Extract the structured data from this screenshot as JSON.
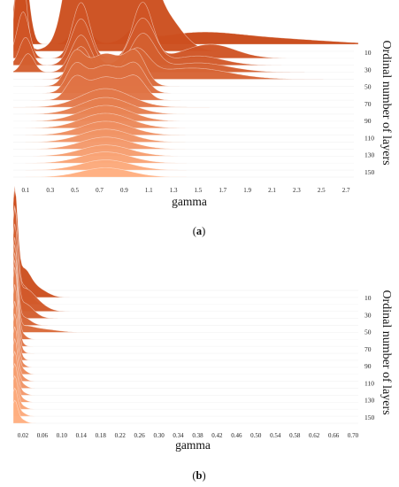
{
  "chart_data": [
    {
      "type": "area",
      "panel": "(a)",
      "caption_open": "(",
      "caption_letter": "a",
      "caption_close": ")",
      "xlabel": "gamma",
      "ylabel": "Ordinal number of layers",
      "xlim": [
        0.0,
        2.8
      ],
      "x_ticks": [
        "0.1",
        "0.3",
        "0.5",
        "0.7",
        "0.9",
        "1.1",
        "1.3",
        "1.5",
        "1.7",
        "1.9",
        "2.1",
        "2.3",
        "2.5",
        "2.7"
      ],
      "y_ticks": [
        "10",
        "30",
        "50",
        "70",
        "90",
        "110",
        "130",
        "150"
      ],
      "layer_count": 20,
      "colors": {
        "dark": "#c94a1a",
        "light": "#ffae80"
      },
      "series": [
        {
          "peaks": [
            [
              0.07,
              0.05,
              1.0
            ],
            [
              0.55,
              0.07,
              0.25
            ],
            [
              1.0,
              0.08,
              0.15
            ],
            [
              1.5,
              0.35,
              0.12
            ],
            [
              2.2,
              0.4,
              0.05
            ]
          ]
        },
        {
          "peaks": [
            [
              0.06,
              0.04,
              1.05
            ],
            [
              0.5,
              0.08,
              0.9
            ],
            [
              0.75,
              0.2,
              0.8
            ],
            [
              1.05,
              0.08,
              0.85
            ],
            [
              1.2,
              0.15,
              0.4
            ]
          ]
        },
        {
          "peaks": [
            [
              0.08,
              0.05,
              0.5
            ],
            [
              0.55,
              0.07,
              0.6
            ],
            [
              1.05,
              0.08,
              0.6
            ],
            [
              1.6,
              0.2,
              0.15
            ]
          ]
        },
        {
          "peaks": [
            [
              0.1,
              0.05,
              0.3
            ],
            [
              0.55,
              0.08,
              0.5
            ],
            [
              1.05,
              0.1,
              0.5
            ],
            [
              1.5,
              0.2,
              0.1
            ]
          ]
        },
        {
          "peaks": [
            [
              0.12,
              0.05,
              0.2
            ],
            [
              0.55,
              0.08,
              0.4
            ],
            [
              1.05,
              0.1,
              0.4
            ],
            [
              1.5,
              0.25,
              0.1
            ]
          ]
        },
        {
          "peaks": [
            [
              0.55,
              0.08,
              0.35
            ],
            [
              1.0,
              0.1,
              0.3
            ],
            [
              1.45,
              0.3,
              0.12
            ]
          ]
        },
        {
          "peaks": [
            [
              0.5,
              0.07,
              0.3
            ],
            [
              0.75,
              0.15,
              0.35
            ],
            [
              1.0,
              0.08,
              0.3
            ]
          ]
        },
        {
          "peaks": [
            [
              0.5,
              0.07,
              0.25
            ],
            [
              0.75,
              0.15,
              0.3
            ],
            [
              1.0,
              0.08,
              0.25
            ]
          ]
        },
        {
          "peaks": [
            [
              0.5,
              0.07,
              0.2
            ],
            [
              0.75,
              0.15,
              0.25
            ],
            [
              1.0,
              0.08,
              0.2
            ]
          ]
        },
        {
          "peaks": [
            [
              0.75,
              0.2,
              0.2
            ]
          ]
        },
        {
          "peaks": [
            [
              0.75,
              0.2,
              0.18
            ]
          ]
        },
        {
          "peaks": [
            [
              0.75,
              0.2,
              0.17
            ]
          ]
        },
        {
          "peaks": [
            [
              0.75,
              0.2,
              0.16
            ]
          ]
        },
        {
          "peaks": [
            [
              0.75,
              0.2,
              0.15
            ]
          ]
        },
        {
          "peaks": [
            [
              0.75,
              0.2,
              0.14
            ]
          ]
        },
        {
          "peaks": [
            [
              0.75,
              0.2,
              0.13
            ]
          ]
        },
        {
          "peaks": [
            [
              0.75,
              0.2,
              0.12
            ]
          ]
        },
        {
          "peaks": [
            [
              0.75,
              0.2,
              0.12
            ]
          ]
        },
        {
          "peaks": [
            [
              0.75,
              0.2,
              0.11
            ]
          ]
        },
        {
          "peaks": [
            [
              0.75,
              0.2,
              0.1
            ]
          ]
        }
      ]
    },
    {
      "type": "area",
      "panel": "(b)",
      "caption_open": "(",
      "caption_letter": "b",
      "caption_close": ")",
      "xlabel": "gamma",
      "ylabel": "Ordinal number of layers",
      "xlim": [
        0.0,
        0.72
      ],
      "x_ticks": [
        "0.02",
        "0.06",
        "0.10",
        "0.14",
        "0.18",
        "0.22",
        "0.26",
        "0.30",
        "0.34",
        "0.38",
        "0.42",
        "0.46",
        "0.50",
        "0.54",
        "0.58",
        "0.62",
        "0.66",
        "0.70"
      ],
      "y_ticks": [
        "10",
        "30",
        "50",
        "70",
        "90",
        "110",
        "130",
        "150"
      ],
      "layer_count": 20,
      "colors": {
        "dark": "#c94a1a",
        "light": "#ffae80"
      },
      "series": [
        {
          "peaks": [
            [
              0.003,
              0.006,
              1.0
            ]
          ]
        },
        {
          "peaks": [
            [
              0.003,
              0.006,
              0.9
            ],
            [
              0.02,
              0.015,
              0.25
            ],
            [
              0.05,
              0.02,
              0.08
            ]
          ]
        },
        {
          "peaks": [
            [
              0.003,
              0.006,
              0.85
            ],
            [
              0.02,
              0.015,
              0.18
            ]
          ]
        },
        {
          "peaks": [
            [
              0.003,
              0.006,
              0.85
            ],
            [
              0.02,
              0.02,
              0.2
            ],
            [
              0.05,
              0.02,
              0.06
            ]
          ]
        },
        {
          "peaks": [
            [
              0.003,
              0.006,
              0.8
            ],
            [
              0.02,
              0.02,
              0.15
            ]
          ]
        },
        {
          "peaks": [
            [
              0.003,
              0.006,
              0.8
            ],
            [
              0.02,
              0.015,
              0.08
            ]
          ]
        },
        {
          "peaks": [
            [
              0.003,
              0.006,
              0.8
            ],
            [
              0.02,
              0.02,
              0.05
            ],
            [
              0.06,
              0.03,
              0.03
            ]
          ]
        },
        {
          "peaks": [
            [
              0.003,
              0.006,
              0.8
            ],
            [
              0.015,
              0.01,
              0.06
            ]
          ]
        },
        {
          "peaks": [
            [
              0.003,
              0.006,
              0.8
            ],
            [
              0.012,
              0.008,
              0.05
            ]
          ]
        },
        {
          "peaks": [
            [
              0.003,
              0.006,
              0.8
            ],
            [
              0.012,
              0.008,
              0.05
            ]
          ]
        },
        {
          "peaks": [
            [
              0.003,
              0.006,
              0.7
            ],
            [
              0.012,
              0.008,
              0.05
            ]
          ]
        },
        {
          "peaks": [
            [
              0.003,
              0.006,
              0.6
            ],
            [
              0.012,
              0.01,
              0.05
            ]
          ]
        },
        {
          "peaks": [
            [
              0.003,
              0.006,
              0.55
            ],
            [
              0.015,
              0.01,
              0.06
            ]
          ]
        },
        {
          "peaks": [
            [
              0.003,
              0.006,
              0.5
            ],
            [
              0.015,
              0.01,
              0.05
            ]
          ]
        },
        {
          "peaks": [
            [
              0.003,
              0.006,
              0.45
            ],
            [
              0.015,
              0.01,
              0.05
            ]
          ]
        },
        {
          "peaks": [
            [
              0.003,
              0.006,
              0.4
            ],
            [
              0.015,
              0.01,
              0.04
            ]
          ]
        },
        {
          "peaks": [
            [
              0.003,
              0.006,
              0.35
            ],
            [
              0.015,
              0.01,
              0.04
            ]
          ]
        },
        {
          "peaks": [
            [
              0.003,
              0.006,
              0.3
            ],
            [
              0.015,
              0.01,
              0.04
            ]
          ]
        },
        {
          "peaks": [
            [
              0.003,
              0.006,
              0.25
            ],
            [
              0.015,
              0.01,
              0.04
            ]
          ]
        },
        {
          "peaks": [
            [
              0.003,
              0.006,
              0.2
            ],
            [
              0.015,
              0.01,
              0.04
            ]
          ]
        }
      ]
    }
  ]
}
